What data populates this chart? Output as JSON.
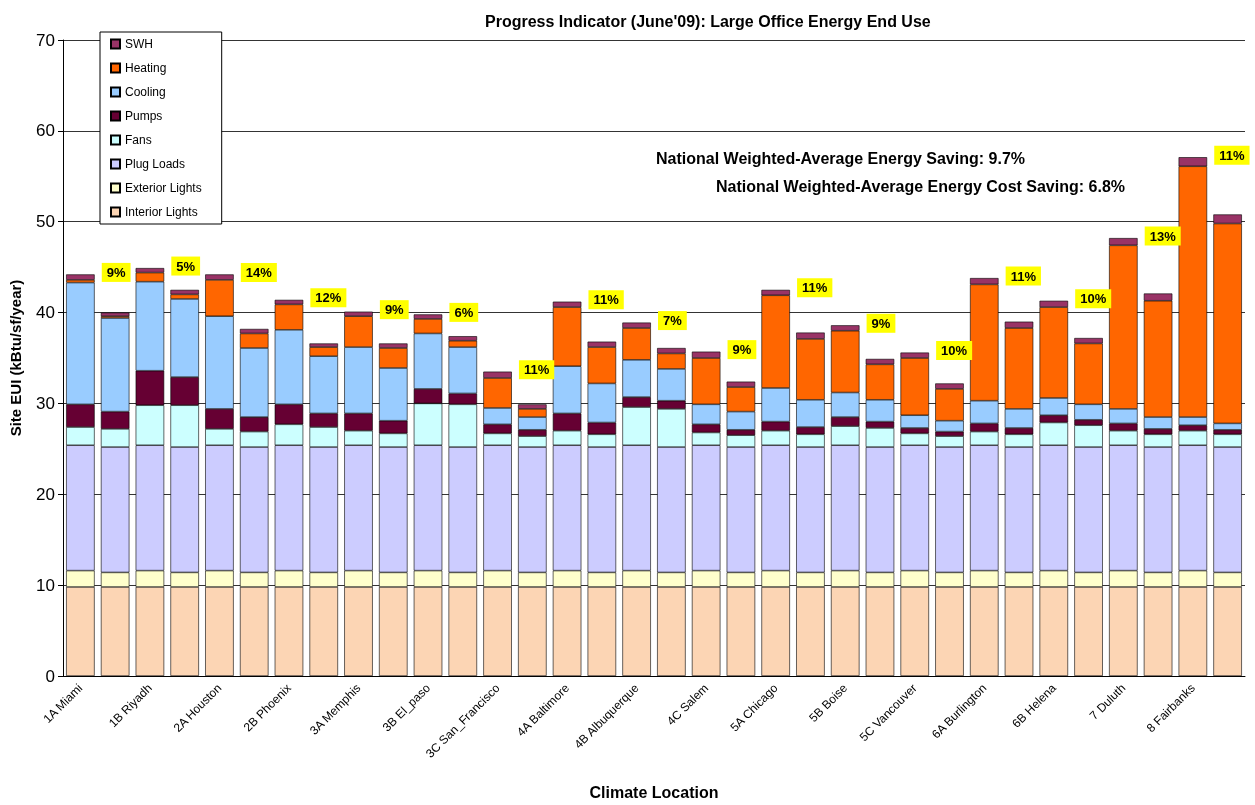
{
  "chart_data": {
    "type": "bar",
    "stacked": true,
    "title": "Progress Indicator (June'09): Large Office Energy End Use",
    "xlabel": "Climate Location",
    "ylabel": "Site EUI (kBtu/sf/year)",
    "categories": [
      "1A Miami",
      null,
      "1B Riyadh",
      null,
      "2A Houston",
      null,
      "2B Phoenix",
      null,
      "3A Memphis",
      null,
      "3B El_paso",
      null,
      "3C San_Francisco",
      null,
      "4A Baltimore",
      null,
      "4B Albuquerque",
      null,
      "4C Salem",
      null,
      "5A Chicago",
      null,
      "5B Boise",
      null,
      "5C Vancouver",
      null,
      "6A Burlington",
      null,
      "6B Helena",
      null,
      "7 Duluth",
      null,
      "8 Fairbanks",
      null
    ],
    "series": [
      {
        "name": "Interior Lights",
        "color": "#fcd5b4",
        "values": [
          9.8,
          9.8,
          9.8,
          9.8,
          9.8,
          9.8,
          9.8,
          9.8,
          9.8,
          9.8,
          9.8,
          9.8,
          9.8,
          9.8,
          9.8,
          9.8,
          9.8,
          9.8,
          9.8,
          9.8,
          9.8,
          9.8,
          9.8,
          9.8,
          9.8,
          9.8,
          9.8,
          9.8,
          9.8,
          9.8,
          9.8,
          9.8,
          9.8,
          9.8
        ]
      },
      {
        "name": "Exterior Lights",
        "color": "#ffffcc",
        "values": [
          1.8,
          1.6,
          1.8,
          1.6,
          1.8,
          1.6,
          1.8,
          1.6,
          1.8,
          1.6,
          1.8,
          1.6,
          1.8,
          1.6,
          1.8,
          1.6,
          1.8,
          1.6,
          1.8,
          1.6,
          1.8,
          1.6,
          1.8,
          1.6,
          1.8,
          1.6,
          1.8,
          1.6,
          1.8,
          1.6,
          1.8,
          1.6,
          1.8,
          1.6
        ]
      },
      {
        "name": "Plug Loads",
        "color": "#ccccff",
        "values": [
          13.8,
          13.8,
          13.8,
          13.8,
          13.8,
          13.8,
          13.8,
          13.8,
          13.8,
          13.8,
          13.8,
          13.8,
          13.8,
          13.8,
          13.8,
          13.8,
          13.8,
          13.8,
          13.8,
          13.8,
          13.8,
          13.8,
          13.8,
          13.8,
          13.8,
          13.8,
          13.8,
          13.8,
          13.8,
          13.8,
          13.8,
          13.8,
          13.8,
          13.8
        ]
      },
      {
        "name": "Fans",
        "color": "#ccffff",
        "values": [
          2.0,
          2.0,
          4.4,
          4.6,
          1.8,
          1.7,
          2.3,
          2.2,
          1.6,
          1.5,
          4.6,
          4.7,
          1.3,
          1.2,
          1.6,
          1.4,
          4.2,
          4.2,
          1.4,
          1.3,
          1.6,
          1.4,
          2.1,
          2.1,
          1.3,
          1.2,
          1.5,
          1.4,
          2.5,
          2.4,
          1.6,
          1.4,
          1.6,
          1.4
        ]
      },
      {
        "name": "Pumps",
        "color": "#660033",
        "values": [
          2.5,
          1.9,
          3.8,
          3.1,
          2.2,
          1.6,
          2.2,
          1.5,
          1.9,
          1.4,
          1.6,
          1.2,
          1.0,
          0.7,
          1.9,
          1.3,
          1.1,
          0.9,
          0.9,
          0.6,
          1.0,
          0.8,
          1.0,
          0.7,
          0.6,
          0.5,
          0.9,
          0.7,
          0.8,
          0.6,
          0.8,
          0.6,
          0.6,
          0.5
        ]
      },
      {
        "name": "Cooling",
        "color": "#99ccff",
        "values": [
          13.4,
          10.3,
          9.8,
          8.6,
          10.2,
          7.6,
          8.2,
          6.3,
          7.3,
          5.8,
          6.1,
          5.1,
          1.8,
          1.4,
          5.2,
          4.3,
          4.1,
          3.5,
          2.2,
          2.0,
          3.7,
          3.0,
          2.7,
          2.4,
          1.4,
          1.2,
          2.5,
          2.1,
          1.9,
          1.7,
          1.6,
          1.3,
          0.9,
          0.7
        ]
      },
      {
        "name": "Heating",
        "color": "#ff6600",
        "values": [
          0.3,
          0.2,
          1.0,
          0.5,
          4.0,
          1.6,
          2.8,
          1.0,
          3.4,
          2.2,
          1.6,
          0.7,
          3.3,
          0.9,
          6.5,
          4.0,
          3.5,
          1.7,
          5.1,
          2.7,
          10.2,
          6.7,
          6.8,
          3.9,
          6.3,
          3.5,
          12.8,
          8.9,
          10.0,
          6.7,
          18.0,
          12.8,
          27.6,
          22.0
        ]
      },
      {
        "name": "SWH",
        "color": "#993366",
        "values": [
          0.6,
          0.4,
          0.5,
          0.5,
          0.6,
          0.5,
          0.5,
          0.4,
          0.5,
          0.5,
          0.5,
          0.5,
          0.7,
          0.5,
          0.6,
          0.6,
          0.6,
          0.6,
          0.7,
          0.6,
          0.6,
          0.7,
          0.6,
          0.6,
          0.6,
          0.6,
          0.7,
          0.7,
          0.7,
          0.6,
          0.8,
          0.8,
          1.0,
          1.0
        ]
      }
    ],
    "ylim": [
      0,
      70
    ],
    "yticks": [
      0,
      10,
      20,
      30,
      40,
      50,
      60,
      70
    ],
    "grid": "y",
    "legend": "top left",
    "annotations": [
      "National Weighted-Average Energy Saving: 9.7%",
      "National Weighted-Average Energy Cost Saving: 6.8%",
      {
        "text": "9%",
        "x": "1A Miami",
        "y": 44.2
      },
      {
        "text": "5%",
        "x": "1B Riyadh",
        "y": 44.9
      },
      {
        "text": "14%",
        "x": "2A Houston",
        "y": 44.2
      },
      {
        "text": "12%",
        "x": "2B Phoenix",
        "y": 41.4
      },
      {
        "text": "9%",
        "x": "3A Memphis",
        "y": 40.1
      },
      {
        "text": "6%",
        "x": "3B El_paso",
        "y": 39.8
      },
      {
        "text": "11%",
        "x": "3C San_Francisco",
        "y": 33.5
      },
      {
        "text": "11%",
        "x": "4A Baltimore",
        "y": 41.2
      },
      {
        "text": "7%",
        "x": "4B Albuquerque",
        "y": 38.9
      },
      {
        "text": "9%",
        "x": "4C Salem",
        "y": 35.7
      },
      {
        "text": "11%",
        "x": "5A Chicago",
        "y": 42.5
      },
      {
        "text": "9%",
        "x": "5B Boise",
        "y": 38.6
      },
      {
        "text": "10%",
        "x": "5C Vancouver",
        "y": 35.6
      },
      {
        "text": "11%",
        "x": "6A Burlington",
        "y": 43.8
      },
      {
        "text": "10%",
        "x": "6B Helena",
        "y": 41.3
      },
      {
        "text": "13%",
        "x": "7 Duluth",
        "y": 48.2
      },
      {
        "text": "11%",
        "x": "8 Fairbanks",
        "y": 57.1
      }
    ]
  }
}
